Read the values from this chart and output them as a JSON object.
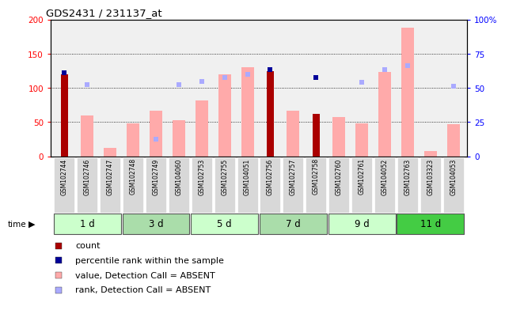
{
  "title": "GDS2431 / 231137_at",
  "samples": [
    "GSM102744",
    "GSM102746",
    "GSM102747",
    "GSM102748",
    "GSM102749",
    "GSM104060",
    "GSM102753",
    "GSM102755",
    "GSM104051",
    "GSM102756",
    "GSM102757",
    "GSM102758",
    "GSM102760",
    "GSM102761",
    "GSM104052",
    "GSM102763",
    "GSM103323",
    "GSM104053"
  ],
  "time_groups": [
    {
      "label": "1 d",
      "indices": [
        0,
        1,
        2
      ],
      "color": "#ccffcc"
    },
    {
      "label": "3 d",
      "indices": [
        3,
        4,
        5
      ],
      "color": "#aaddaa"
    },
    {
      "label": "5 d",
      "indices": [
        6,
        7,
        8
      ],
      "color": "#ccffcc"
    },
    {
      "label": "7 d",
      "indices": [
        9,
        10,
        11
      ],
      "color": "#aaddaa"
    },
    {
      "label": "9 d",
      "indices": [
        12,
        13,
        14
      ],
      "color": "#ccffcc"
    },
    {
      "label": "11 d",
      "indices": [
        15,
        16,
        17
      ],
      "color": "#44cc44"
    }
  ],
  "count_values": [
    120,
    0,
    0,
    0,
    0,
    0,
    0,
    0,
    0,
    125,
    0,
    62,
    0,
    0,
    0,
    0,
    0,
    0
  ],
  "percentile_values": [
    122,
    0,
    0,
    0,
    0,
    0,
    0,
    0,
    0,
    127,
    0,
    115,
    0,
    0,
    0,
    0,
    0,
    0
  ],
  "absent_value_bars": [
    0,
    60,
    12,
    48,
    67,
    53,
    82,
    120,
    130,
    0,
    67,
    0,
    58,
    48,
    123,
    188,
    8,
    47
  ],
  "absent_rank_dots": [
    0,
    105,
    0,
    0,
    25,
    105,
    110,
    115,
    120,
    0,
    0,
    0,
    0,
    108,
    127,
    133,
    0,
    103
  ],
  "left_ylim": [
    0,
    200
  ],
  "left_yticks": [
    0,
    50,
    100,
    150,
    200
  ],
  "right_yticks": [
    0,
    25,
    50,
    75,
    100
  ],
  "right_yticklabels": [
    "0",
    "25",
    "50",
    "75",
    "100%"
  ],
  "grid_values": [
    50,
    100,
    150
  ],
  "count_color": "#aa0000",
  "percentile_color": "#000099",
  "absent_value_color": "#ffaaaa",
  "absent_rank_color": "#aaaaff",
  "plot_bg": "#f0f0f0"
}
